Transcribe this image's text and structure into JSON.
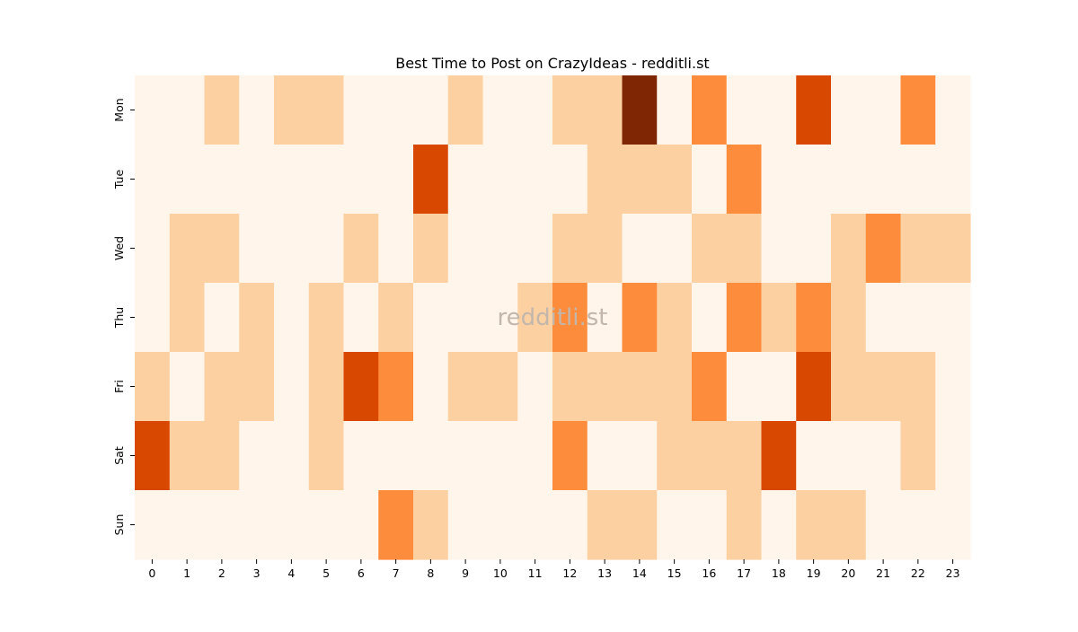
{
  "chart_data": {
    "type": "heatmap",
    "title": "Best Time to Post on CrazyIdeas - redditli.st",
    "watermark": "redditli.st",
    "x_categories": [
      "0",
      "1",
      "2",
      "3",
      "4",
      "5",
      "6",
      "7",
      "8",
      "9",
      "10",
      "11",
      "12",
      "13",
      "14",
      "15",
      "16",
      "17",
      "18",
      "19",
      "20",
      "21",
      "22",
      "23"
    ],
    "y_categories": [
      "Mon",
      "Tue",
      "Wed",
      "Thu",
      "Fri",
      "Sat",
      "Sun"
    ],
    "xlabel": "",
    "ylabel": "",
    "colorscale": [
      "#fff5eb",
      "#fdd0a2",
      "#fd8d3c",
      "#d94801",
      "#7f2704"
    ],
    "value_range": [
      0,
      4
    ],
    "values": [
      [
        0,
        0,
        1,
        0,
        1,
        1,
        0,
        0,
        0,
        1,
        0,
        0,
        1,
        1,
        4,
        0,
        2,
        0,
        0,
        3,
        0,
        0,
        2,
        0
      ],
      [
        0,
        0,
        0,
        0,
        0,
        0,
        0,
        0,
        3,
        0,
        0,
        0,
        0,
        1,
        1,
        1,
        0,
        2,
        0,
        0,
        0,
        0,
        0,
        0
      ],
      [
        0,
        1,
        1,
        0,
        0,
        0,
        1,
        0,
        1,
        0,
        0,
        0,
        1,
        1,
        0,
        0,
        1,
        1,
        0,
        0,
        1,
        2,
        1,
        1
      ],
      [
        0,
        1,
        0,
        1,
        0,
        1,
        0,
        1,
        0,
        0,
        0,
        1,
        2,
        0,
        2,
        1,
        0,
        2,
        1,
        2,
        1,
        0,
        0,
        0
      ],
      [
        1,
        0,
        1,
        1,
        0,
        1,
        3,
        2,
        0,
        1,
        1,
        0,
        1,
        1,
        1,
        1,
        2,
        0,
        0,
        3,
        1,
        1,
        1,
        0
      ],
      [
        3,
        1,
        1,
        0,
        0,
        1,
        0,
        0,
        0,
        0,
        0,
        0,
        2,
        0,
        0,
        1,
        1,
        1,
        3,
        0,
        0,
        0,
        1,
        0
      ],
      [
        0,
        0,
        0,
        0,
        0,
        0,
        0,
        2,
        1,
        0,
        0,
        0,
        0,
        1,
        1,
        0,
        0,
        1,
        0,
        1,
        1,
        0,
        0,
        0
      ]
    ]
  }
}
